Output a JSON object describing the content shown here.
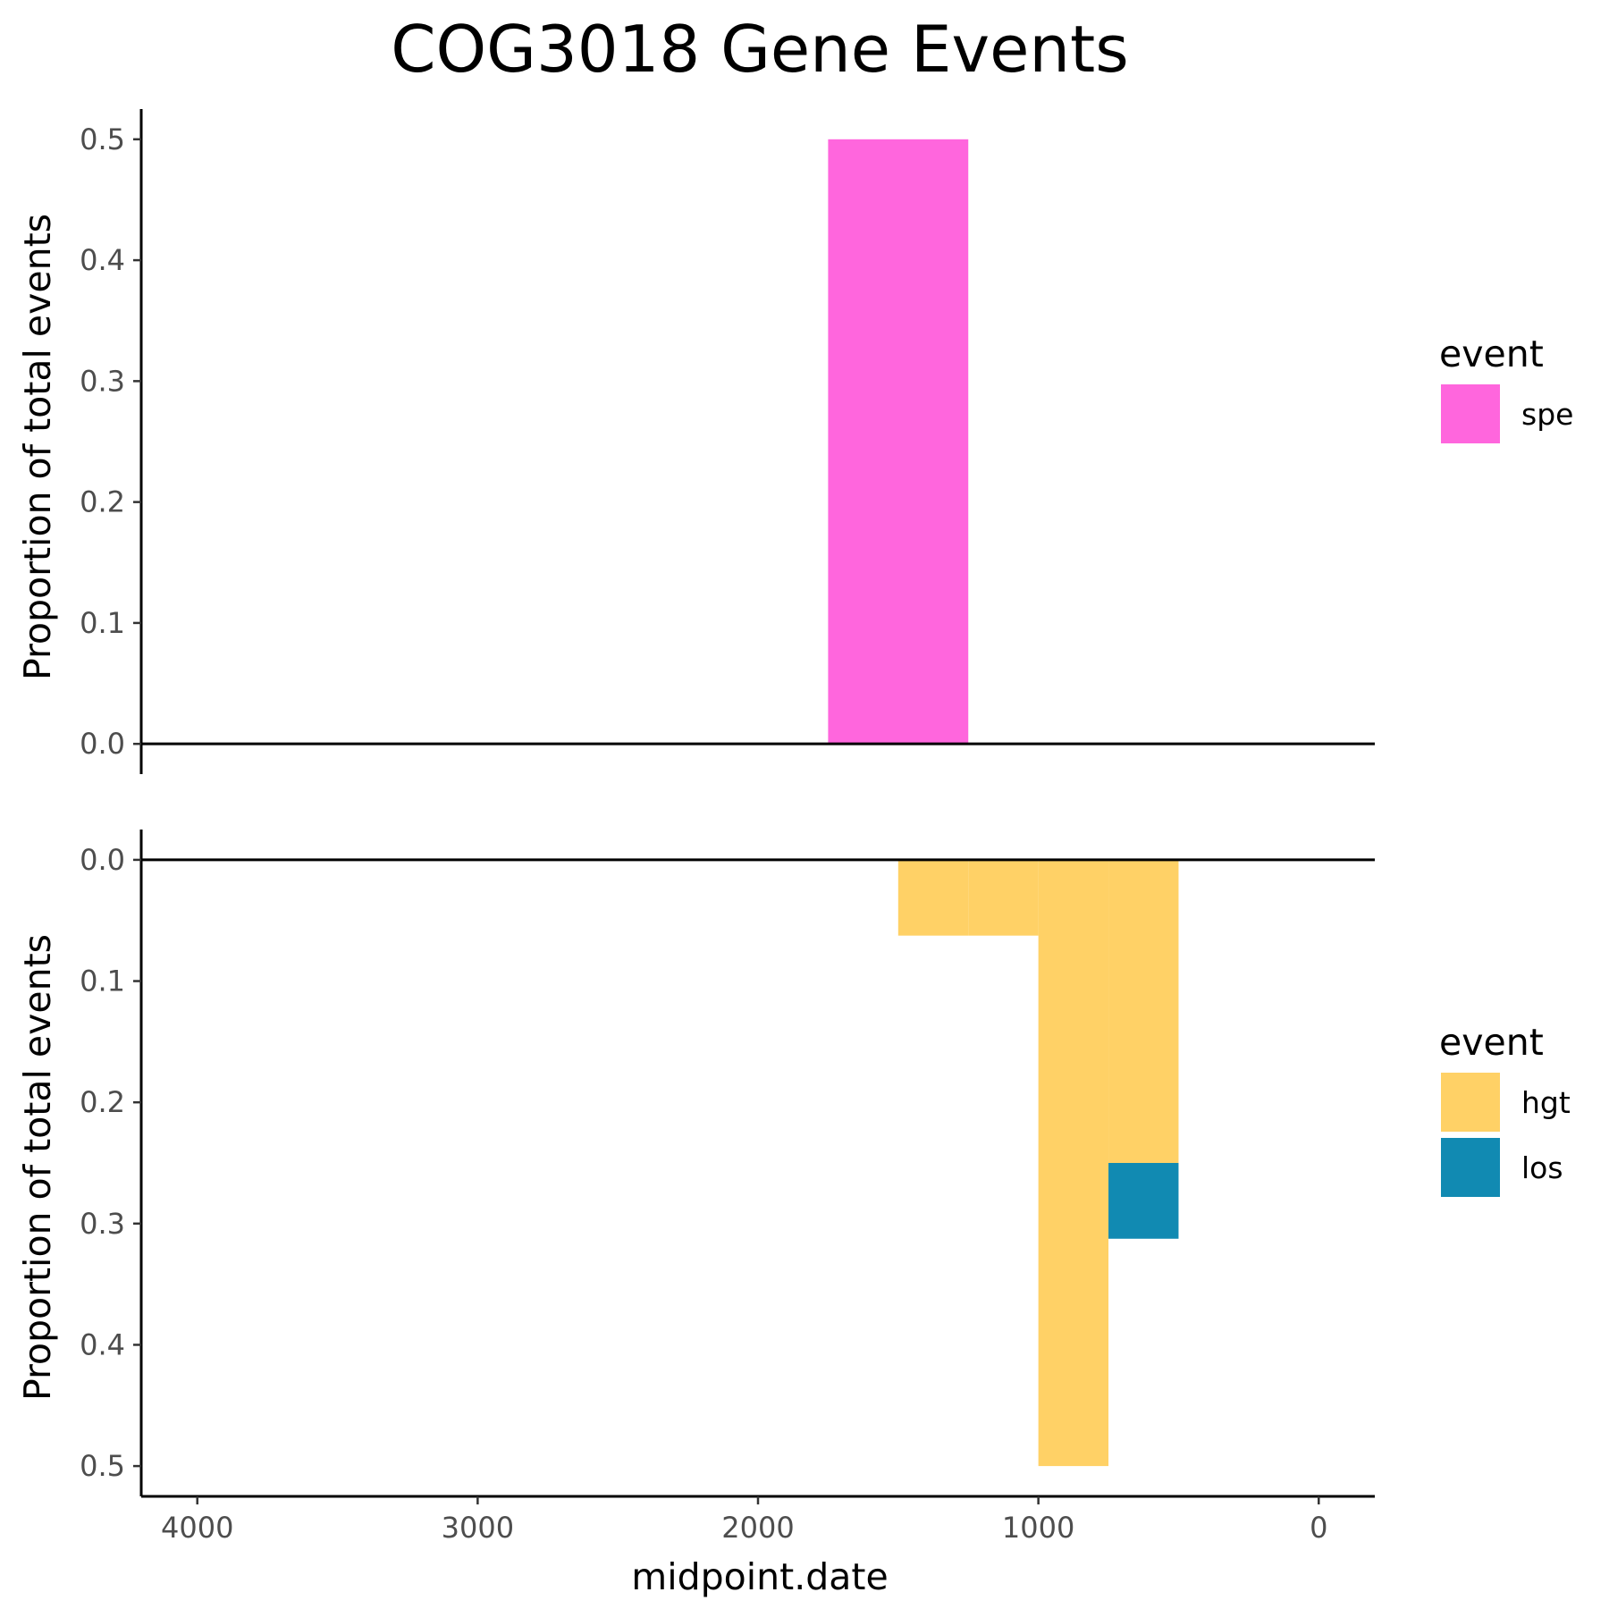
{
  "title": "COG3018 Gene Events",
  "chart_data": [
    {
      "type": "bar",
      "panel": "top",
      "xlabel": "midpoint.date",
      "ylabel": "Proportion of total events",
      "x_reversed": true,
      "xlim": [
        4200,
        -200
      ],
      "ylim": [
        -0.025,
        0.525
      ],
      "y_ticks": [
        "0.0",
        "0.1",
        "0.2",
        "0.3",
        "0.4",
        "0.5"
      ],
      "y_tick_values": [
        0,
        0.1,
        0.2,
        0.3,
        0.4,
        0.5
      ],
      "bin_width": 500,
      "legend": {
        "title": "event",
        "position": "right",
        "entries": [
          {
            "label": "spe",
            "color": "#FF66DD"
          }
        ]
      },
      "series": [
        {
          "name": "spe",
          "color": "#FF66DD",
          "bins": [
            {
              "x": 1500,
              "value": 0.5
            }
          ]
        }
      ]
    },
    {
      "type": "bar",
      "panel": "bottom",
      "xlabel": "midpoint.date",
      "ylabel": "Proportion of total events",
      "x_reversed": true,
      "y_reversed": true,
      "xlim": [
        4200,
        -200
      ],
      "ylim": [
        -0.025,
        0.525
      ],
      "x_ticks": [
        "4000",
        "3000",
        "2000",
        "1000",
        "0"
      ],
      "x_tick_values": [
        4000,
        3000,
        2000,
        1000,
        0
      ],
      "y_ticks": [
        "0.0",
        "0.1",
        "0.2",
        "0.3",
        "0.4",
        "0.5"
      ],
      "y_tick_values": [
        0,
        0.1,
        0.2,
        0.3,
        0.4,
        0.5
      ],
      "bin_width": 250,
      "legend": {
        "title": "event",
        "position": "right",
        "entries": [
          {
            "label": "hgt",
            "color": "#FFD166"
          },
          {
            "label": "los",
            "color": "#118AB2"
          }
        ]
      },
      "series": [
        {
          "name": "hgt",
          "color": "#FFD166",
          "bins": [
            {
              "x": 1375,
              "value": 0.0625
            },
            {
              "x": 1125,
              "value": 0.0625
            },
            {
              "x": 875,
              "value": 0.5
            },
            {
              "x": 625,
              "value": 0.25
            }
          ]
        },
        {
          "name": "los",
          "color": "#118AB2",
          "bins": [
            {
              "x": 625,
              "value": 0.0625
            }
          ]
        }
      ]
    }
  ]
}
